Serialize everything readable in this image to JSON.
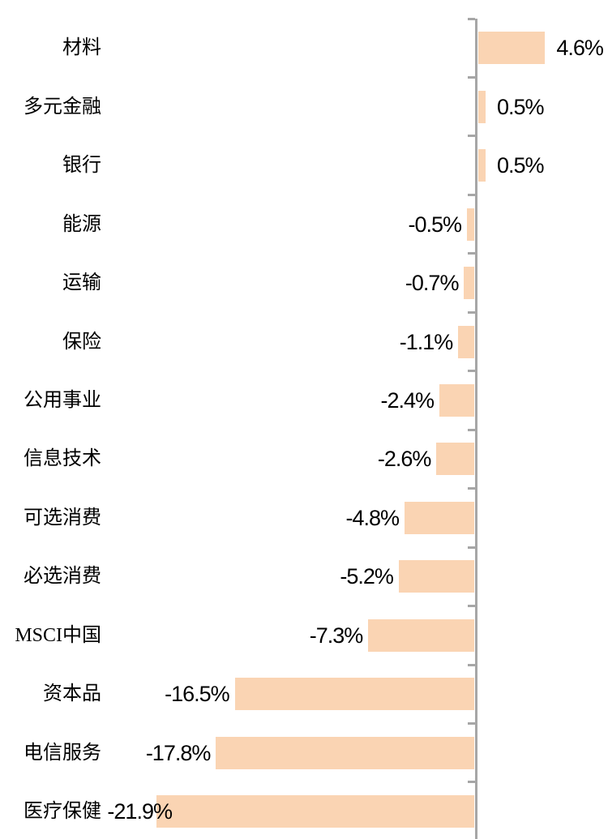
{
  "chart_data": {
    "type": "bar",
    "orientation": "horizontal",
    "title": "",
    "xlabel": "",
    "ylabel": "",
    "unit": "%",
    "baseline": 0,
    "grid": false,
    "legend": null,
    "categories": [
      "材料",
      "多元金融",
      "银行",
      "能源",
      "运输",
      "保险",
      "公用事业",
      "信息技术",
      "可选消费",
      "必选消费",
      "MSCI中国",
      "资本品",
      "电信服务",
      "医疗保健"
    ],
    "values": [
      4.6,
      0.5,
      0.5,
      -0.5,
      -0.7,
      -1.1,
      -2.4,
      -2.6,
      -4.8,
      -5.2,
      -7.3,
      -16.5,
      -17.8,
      -21.9
    ],
    "value_labels": [
      "4.6%",
      "0.5%",
      "0.5%",
      "-0.5%",
      "-0.7%",
      "-1.1%",
      "-2.4%",
      "-2.6%",
      "-4.8%",
      "-5.2%",
      "-7.3%",
      "-16.5%",
      "-17.8%",
      "-21.9%"
    ],
    "xlim": [
      -33,
      9
    ],
    "colors": {
      "bar_fill": "#fad4b3",
      "axis_line": "#a6a6a6",
      "text": "#000000"
    }
  }
}
